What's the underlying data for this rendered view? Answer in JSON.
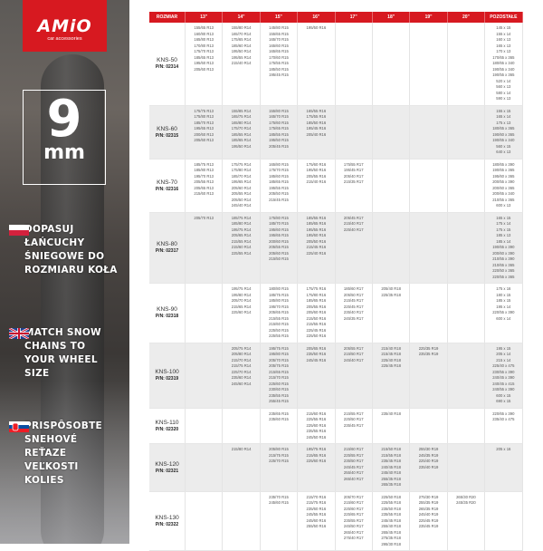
{
  "logo": {
    "brand": "AMiO",
    "tagline": "car accessories"
  },
  "badge": {
    "number": "9",
    "unit": "mm"
  },
  "slogans": [
    {
      "flag": "poland-flag-icon",
      "text": "DOPASUJ ŁAŃCUCHY ŚNIEGOWE DO ROZMIARU KOŁA"
    },
    {
      "flag": "uk-flag-icon",
      "text": "MATCH SNOW CHAINS TO YOUR WHEEL SIZE"
    },
    {
      "flag": "slovakia-flag-icon",
      "text": "PRISPÔSOBTE SNEHOVÉ REŤAZE VEĽKOSTI KOLIES"
    }
  ],
  "colors": {
    "accent": "#d71920"
  },
  "table": {
    "headers": [
      "ROZMIAR",
      "13\"",
      "14\"",
      "15\"",
      "16\"",
      "17\"",
      "18\"",
      "19\"",
      "20\"",
      "POZOSTAŁE"
    ],
    "rows": [
      {
        "model": "KNS-50",
        "pn": "P/N: 02314",
        "cols": [
          [
            "155/65 R13",
            "160/80 R13",
            "165/80 R13",
            "170/80 R13",
            "175/70 R13",
            "185/65 R13",
            "195/60 R13",
            "205/60 R13"
          ],
          [
            "155/80 R14",
            "165/70 R14",
            "175/65 R14",
            "185/60 R14",
            "195/50 R14",
            "195/55 R14",
            "215/40 R14"
          ],
          [
            "145/80 R15",
            "155/65 R15",
            "165/70 R15",
            "165/60 R15",
            "165/65 R15",
            "170/60 R15",
            "175/55 R15",
            "185/50 R15",
            "195/45 R15"
          ],
          [
            "195/50 R16"
          ],
          [],
          [],
          [],
          [],
          [
            "145 x 15",
            "155 x 14",
            "160 x 13",
            "165 x 13",
            "170 x 13",
            "170/65 x 365",
            "180/65 x 340",
            "190/55 x 340",
            "190/55 x 365",
            "520 x 14",
            "560 x 13",
            "580 x 14",
            "590 x 13"
          ]
        ]
      },
      {
        "model": "KNS-60",
        "pn": "P/N: 02315",
        "cols": [
          [
            "175/75 R13",
            "175/80 R13",
            "185/70 R13",
            "195/65 R13",
            "200/60 R13",
            "205/60 R13"
          ],
          [
            "155/85 R14",
            "165/75 R14",
            "165/80 R14",
            "175/70 R14",
            "185/55 R14",
            "185/65 R14",
            "195/50 R14"
          ],
          [
            "155/80 R15",
            "165/70 R15",
            "175/60 R15",
            "175/65 R15",
            "185/55 R15",
            "195/50 R15",
            "205/45 R15"
          ],
          [
            "165/55 R16",
            "175/55 R16",
            "185/50 R16",
            "195/45 R16",
            "205/40 R16"
          ],
          [],
          [],
          [],
          [],
          [
            "155 x 15",
            "165 x 14",
            "175 x 13",
            "180/65 x 365",
            "190/60 x 365",
            "190/65 x 340",
            "560 x 15",
            "640 x 13"
          ]
        ]
      },
      {
        "model": "KNS-70",
        "pn": "P/N: 02316",
        "cols": [
          [
            "185/75 R13",
            "185/80 R13",
            "195/70 R13",
            "205/55 R13",
            "205/65 R13",
            "215/60 R13"
          ],
          [
            "175/75 R14",
            "175/80 R14",
            "185/70 R14",
            "195/65 R14",
            "205/60 R14",
            "205/55 R14",
            "205/50 R14",
            "245/40 R14"
          ],
          [
            "165/80 R15",
            "175/70 R15",
            "185/60 R15",
            "185/65 R15",
            "195/55 R15",
            "205/50 R15",
            "215/45 R15"
          ],
          [
            "175/60 R16",
            "195/50 R16",
            "205/55 R16",
            "215/40 R16"
          ],
          [
            "175/55 R17",
            "195/45 R17",
            "205/40 R17",
            "215/35 R17"
          ],
          [],
          [],
          [],
          [
            "180/65 x 390",
            "190/65 x 365",
            "195/60 x 365",
            "200/55 x 390",
            "200/60 x 365",
            "200/65 x 340",
            "210/55 x 365",
            "600 x 13"
          ]
        ]
      },
      {
        "model": "KNS-80",
        "pn": "P/N: 02317",
        "cols": [
          [
            "205/70 R13"
          ],
          [
            "185/75 R14",
            "185/80 R14",
            "195/75 R14",
            "205/65 R14",
            "215/55 R14",
            "215/60 R14",
            "225/55 R14"
          ],
          [
            "175/80 R15",
            "185/70 R15",
            "195/60 R15",
            "195/65 R15",
            "200/60 R15",
            "205/55 R15",
            "205/60 R15",
            "215/50 R15"
          ],
          [
            "185/55 R16",
            "185/65 R16",
            "195/55 R16",
            "195/60 R16",
            "205/50 R16",
            "215/45 R16",
            "225/40 R16"
          ],
          [
            "205/45 R17",
            "215/40 R17",
            "225/40 R17"
          ],
          [],
          [],
          [],
          [
            "165 x 15",
            "175 x 14",
            "175 x 15",
            "185 x 13",
            "185 x 14",
            "190/65 x 390",
            "200/60 x 390",
            "210/55 x 390",
            "210/65 x 365",
            "220/50 x 365",
            "220/55 x 365"
          ]
        ]
      },
      {
        "model": "KNS-90",
        "pn": "P/N: 02318",
        "cols": [
          [],
          [
            "195/75 R14",
            "195/80 R14",
            "205/70 R14",
            "215/65 R14",
            "225/60 R14"
          ],
          [
            "180/80 R15",
            "185/75 R15",
            "185/80 R15",
            "195/70 R15",
            "205/65 R15",
            "215/55 R15",
            "215/60 R15",
            "225/50 R15",
            "225/55 R15"
          ],
          [
            "175/75 R16",
            "175/80 R16",
            "185/65 R16",
            "205/55 R16",
            "205/60 R16",
            "215/50 R16",
            "215/55 R16",
            "225/45 R16",
            "225/50 R16"
          ],
          [
            "185/60 R17",
            "205/50 R17",
            "215/45 R17",
            "225/45 R17",
            "235/40 R17",
            "245/35 R17"
          ],
          [
            "205/40 R18",
            "225/35 R18"
          ],
          [],
          [],
          [
            "175 x 16",
            "180 x 15",
            "185 x 15",
            "195 x 14",
            "220/55 x 390",
            "600 x 14"
          ]
        ]
      },
      {
        "model": "KNS-100",
        "pn": "P/N: 02319",
        "cols": [
          [],
          [
            "205/75 R14",
            "205/80 R14",
            "215/70 R14",
            "215/75 R14",
            "225/70 R14",
            "235/60 R14",
            "245/60 R14"
          ],
          [
            "195/75 R15",
            "195/80 R15",
            "205/70 R15",
            "205/75 R15",
            "215/65 R15",
            "215/70 R15",
            "225/60 R15",
            "230/60 R15",
            "235/55 R15",
            "255/45 R15"
          ],
          [
            "205/65 R16",
            "235/50 R16",
            "245/45 R16"
          ],
          [
            "205/55 R17",
            "215/50 R17",
            "245/40 R17"
          ],
          [
            "215/40 R18",
            "215/45 R18",
            "225/40 R18",
            "225/45 R18"
          ],
          [
            "225/35 R19",
            "235/35 R19"
          ],
          [],
          [
            "195 x 15",
            "205 x 14",
            "215 x 14",
            "225/40 x 475",
            "230/55 x 390",
            "240/45 x 390",
            "240/45 x 415",
            "240/55 x 390",
            "600 x 15",
            "690 x 15"
          ]
        ]
      },
      {
        "model": "KNS-110",
        "pn": "P/N: 02320",
        "cols": [
          [],
          [],
          [
            "235/65 R15",
            "235/60 R15"
          ],
          [
            "215/60 R16",
            "225/55 R16",
            "225/60 R16",
            "235/55 R16",
            "245/50 R16"
          ],
          [
            "215/55 R17",
            "225/50 R17",
            "235/45 R17"
          ],
          [
            "235/40 R18"
          ],
          [],
          [],
          [
            "220/65 x 390",
            "235/40 x 475"
          ]
        ]
      },
      {
        "model": "KNS-120",
        "pn": "P/N: 02321",
        "cols": [
          [],
          [
            "215/80 R14"
          ],
          [
            "205/80 R15",
            "215/75 R15",
            "225/70 R15"
          ],
          [
            "195/75 R16",
            "215/65 R16",
            "225/60 R16"
          ],
          [
            "215/60 R17",
            "225/55 R17",
            "235/50 R17",
            "245/45 R17",
            "255/40 R17",
            "265/40 R17"
          ],
          [
            "215/50 R18",
            "215/55 R18",
            "235/45 R18",
            "240/45 R18",
            "245/40 R18",
            "255/35 R18",
            "265/35 R18"
          ],
          [
            "255/30 R19",
            "245/35 R19",
            "225/40 R19",
            "235/40 R19"
          ],
          [],
          [
            "205 x 16"
          ]
        ]
      },
      {
        "model": "KNS-130",
        "pn": "P/N: 02322",
        "cols": [
          [],
          [],
          [
            "235/70 R15",
            "245/60 R15"
          ],
          [
            "215/70 R16",
            "215/75 R16",
            "235/60 R16",
            "245/55 R16",
            "245/60 R16",
            "255/50 R16"
          ],
          [
            "205/70 R17",
            "215/60 R17",
            "225/60 R17",
            "225/65 R17",
            "235/55 R17",
            "245/50 R17",
            "265/40 R17",
            "275/40 R17"
          ],
          [
            "225/50 R18",
            "225/55 R18",
            "235/50 R18",
            "235/55 R18",
            "245/45 R18",
            "255/40 R18",
            "265/45 R18",
            "275/35 R18",
            "295/30 R18"
          ],
          [
            "275/30 R19",
            "255/35 R19",
            "265/35 R19",
            "245/40 R19",
            "225/45 R19",
            "235/45 R19"
          ],
          [
            "265/30 R20",
            "245/35 R20"
          ],
          []
        ]
      }
    ]
  }
}
